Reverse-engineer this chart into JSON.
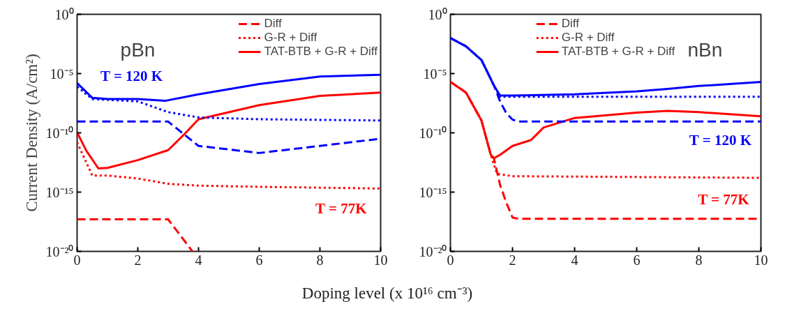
{
  "chart_data": [
    {
      "type": "line",
      "title": "pBn",
      "ylabel": "Current Density (A/cm²)",
      "xlabel": "Doping level (x 10¹⁶ cm⁻³)",
      "log": "y",
      "legend": "top right",
      "grid": false,
      "xlim": [
        0,
        10
      ],
      "xticks": [
        0,
        2,
        4,
        6,
        8,
        10
      ],
      "ylim": [
        1e-20,
        1
      ],
      "yticks": [
        {
          "value": 1e-20,
          "label": "10⁻²⁰"
        },
        {
          "value": 1e-15,
          "label": "10⁻¹⁵"
        },
        {
          "value": 1e-10,
          "label": "10⁻¹⁰"
        },
        {
          "value": 1e-05,
          "label": "10⁻⁵"
        },
        {
          "value": 1,
          "label": "10⁰"
        }
      ],
      "series": [
        {
          "name": "Diff",
          "color": "#ff0000",
          "line_style": "dashed",
          "x": [
            0,
            3,
            3.8
          ],
          "values": [
            5e-18,
            5e-18,
            1e-20
          ]
        },
        {
          "name": "G-R + Diff",
          "color": "#ff0000",
          "line_style": "dotted",
          "x": [
            0,
            0.5,
            1,
            2,
            3,
            4,
            6,
            10
          ],
          "values": [
            1.6e-11,
            2.5e-14,
            2.5e-14,
            1.4e-14,
            5e-15,
            3.5e-15,
            2.8e-15,
            2e-15
          ]
        },
        {
          "name": "TAT-BTB + G-R + Diff",
          "color": "#ff0000",
          "line_style": "solid",
          "x": [
            0,
            0.3,
            0.7,
            1,
            2,
            3,
            3.5,
            4,
            6,
            8,
            10
          ],
          "values": [
            1.1e-10,
            3.2e-12,
            1e-13,
            1.1e-13,
            5e-13,
            3.5e-12,
            6.3e-11,
            1.4e-09,
            2.2e-08,
            1.3e-07,
            2.5e-07
          ]
        },
        {
          "color": "#0000ff",
          "line_style": "dashed",
          "x": [
            0,
            3,
            4,
            6,
            8,
            10
          ],
          "values": [
            8.9e-10,
            8.9e-10,
            7.9e-12,
            2e-12,
            7.9e-12,
            3.2e-11
          ]
        },
        {
          "color": "#0000ff",
          "line_style": "dotted",
          "x": [
            0,
            0.5,
            2,
            3,
            4,
            6,
            10
          ],
          "values": [
            7.9e-07,
            7.1e-08,
            4.5e-08,
            5.6e-09,
            2e-09,
            1.4e-09,
            1.1e-09
          ]
        },
        {
          "color": "#0000ff",
          "line_style": "solid",
          "x": [
            0,
            0.5,
            1,
            2,
            2.9,
            4,
            6,
            8,
            10
          ],
          "values": [
            1.6e-06,
            8.9e-08,
            7.1e-08,
            7.1e-08,
            5e-08,
            1.8e-07,
            1.3e-06,
            5.6e-06,
            7.9e-06
          ]
        }
      ],
      "annotations": [
        "T = 120 K",
        "T = 77K"
      ]
    },
    {
      "type": "line",
      "title": "nBn",
      "log": "y",
      "legend": "top",
      "grid": false,
      "xlim": [
        0,
        10
      ],
      "xticks": [
        0,
        2,
        4,
        6,
        8,
        10
      ],
      "ylim": [
        1e-20,
        1
      ],
      "yticks": [
        {
          "value": 1e-20,
          "label": "10⁻²⁰"
        },
        {
          "value": 1e-15,
          "label": "10⁻¹⁵"
        },
        {
          "value": 1e-10,
          "label": "10⁻¹⁰"
        },
        {
          "value": 1e-05,
          "label": "10⁻⁵"
        },
        {
          "value": 1,
          "label": "10⁰"
        }
      ],
      "series": [
        {
          "name": "Diff",
          "color": "#ff0000",
          "line_style": "dashed",
          "x": [
            0,
            0.5,
            1,
            1.3,
            1.4,
            1.6,
            1.8,
            2,
            2.2,
            10
          ],
          "values": [
            2e-06,
            2.5e-07,
            1.1e-09,
            1.4e-12,
            7.1e-13,
            4e-15,
            1.3e-16,
            7.1e-18,
            5.6e-18,
            5.6e-18
          ]
        },
        {
          "name": "G-R + Diff",
          "color": "#ff0000",
          "line_style": "dotted",
          "x": [
            0,
            0.5,
            1,
            1.3,
            1.5,
            2,
            10
          ],
          "values": [
            2e-06,
            2.5e-07,
            1.1e-09,
            1.4e-12,
            3.5e-14,
            2.2e-14,
            1.6e-14
          ]
        },
        {
          "name": "TAT-BTB + G-R + Diff",
          "color": "#ff0000",
          "line_style": "solid",
          "x": [
            0,
            0.5,
            1,
            1.3,
            1.4,
            1.6,
            2,
            2.6,
            3,
            4,
            6,
            7,
            8,
            10
          ],
          "values": [
            2e-06,
            2.5e-07,
            1.1e-09,
            1.4e-12,
            7.1e-13,
            1.4e-12,
            7.9e-12,
            2.5e-11,
            2.8e-10,
            1.8e-09,
            5e-09,
            7.1e-09,
            5.6e-09,
            2.5e-09
          ]
        },
        {
          "color": "#0000ff",
          "line_style": "dashed",
          "x": [
            0,
            0.5,
            1,
            1.4,
            1.6,
            1.8,
            2,
            2.2,
            10
          ],
          "values": [
            0.01,
            0.002,
            0.00014,
            1e-06,
            4.5e-08,
            4.5e-09,
            1.3e-09,
            8.9e-10,
            8.9e-10
          ]
        },
        {
          "color": "#0000ff",
          "line_style": "dotted",
          "x": [
            0,
            0.5,
            1,
            1.4,
            1.6,
            10
          ],
          "values": [
            0.01,
            0.002,
            0.00014,
            1e-06,
            1.1e-07,
            1.1e-07
          ]
        },
        {
          "color": "#0000ff",
          "line_style": "solid",
          "x": [
            0,
            0.5,
            1,
            1.4,
            1.6,
            2,
            4,
            6,
            7,
            8,
            10
          ],
          "values": [
            0.01,
            0.002,
            0.00014,
            1e-06,
            1.4e-07,
            1.4e-07,
            1.8e-07,
            3.2e-07,
            5e-07,
            8.9e-07,
            2e-06
          ]
        }
      ],
      "annotations": [
        "T = 120 K",
        "T = 77K"
      ]
    }
  ]
}
